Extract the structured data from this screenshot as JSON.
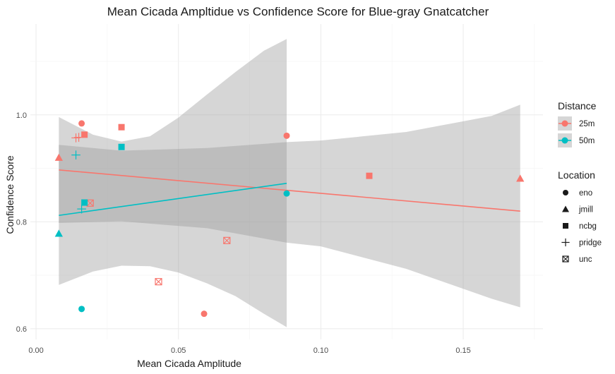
{
  "chart_data": {
    "type": "scatter",
    "title": "Mean Cicada Ampltidue vs Confidence Score for Blue-gray Gnatcatcher",
    "xlabel": "Mean Cicada Amplitude",
    "ylabel": "Confidence Score",
    "xlim": [
      -0.002,
      0.178
    ],
    "ylim": [
      0.58,
      1.17
    ],
    "x_ticks": [
      0.0,
      0.05,
      0.1,
      0.15
    ],
    "x_tick_labels": [
      "0.00",
      "0.05",
      "0.10",
      "0.15"
    ],
    "y_ticks": [
      0.6,
      0.8,
      1.0
    ],
    "y_tick_labels": [
      "0.6",
      "0.8",
      "1.0"
    ],
    "grid": true,
    "colors": {
      "25m": "#F8766D",
      "50m": "#00BFC4",
      "ribbon": "#999999"
    },
    "legend_position": "right",
    "legends": [
      {
        "title": "Distance",
        "kind": "color",
        "entries": [
          "25m",
          "50m"
        ]
      },
      {
        "title": "Location",
        "kind": "shape",
        "entries": [
          "eno",
          "jmill",
          "ncbg",
          "pridge",
          "unc"
        ]
      }
    ],
    "points": [
      {
        "x": 0.016,
        "y": 0.984,
        "distance": "25m",
        "location": "eno"
      },
      {
        "x": 0.059,
        "y": 0.628,
        "distance": "25m",
        "location": "eno"
      },
      {
        "x": 0.088,
        "y": 0.961,
        "distance": "25m",
        "location": "eno"
      },
      {
        "x": 0.008,
        "y": 0.92,
        "distance": "25m",
        "location": "jmill"
      },
      {
        "x": 0.17,
        "y": 0.881,
        "distance": "25m",
        "location": "jmill"
      },
      {
        "x": 0.017,
        "y": 0.963,
        "distance": "25m",
        "location": "ncbg"
      },
      {
        "x": 0.03,
        "y": 0.977,
        "distance": "25m",
        "location": "ncbg"
      },
      {
        "x": 0.117,
        "y": 0.886,
        "distance": "25m",
        "location": "ncbg"
      },
      {
        "x": 0.014,
        "y": 0.957,
        "distance": "25m",
        "location": "pridge"
      },
      {
        "x": 0.015,
        "y": 0.958,
        "distance": "25m",
        "location": "pridge"
      },
      {
        "x": 0.019,
        "y": 0.835,
        "distance": "25m",
        "location": "unc"
      },
      {
        "x": 0.043,
        "y": 0.688,
        "distance": "25m",
        "location": "unc"
      },
      {
        "x": 0.067,
        "y": 0.765,
        "distance": "25m",
        "location": "unc"
      },
      {
        "x": 0.016,
        "y": 0.637,
        "distance": "50m",
        "location": "eno"
      },
      {
        "x": 0.088,
        "y": 0.853,
        "distance": "50m",
        "location": "eno"
      },
      {
        "x": 0.008,
        "y": 0.778,
        "distance": "50m",
        "location": "jmill"
      },
      {
        "x": 0.017,
        "y": 0.836,
        "distance": "50m",
        "location": "ncbg"
      },
      {
        "x": 0.03,
        "y": 0.94,
        "distance": "50m",
        "location": "ncbg"
      },
      {
        "x": 0.014,
        "y": 0.925,
        "distance": "50m",
        "location": "pridge"
      },
      {
        "x": 0.016,
        "y": 0.824,
        "distance": "50m",
        "location": "pridge"
      }
    ],
    "fits": [
      {
        "distance": "25m",
        "line": [
          [
            0.008,
            0.897
          ],
          [
            0.17,
            0.82
          ]
        ],
        "ribbon_x": [
          0.008,
          0.03,
          0.06,
          0.088,
          0.1,
          0.13,
          0.16,
          0.17
        ],
        "ribbon_upper": [
          0.944,
          0.933,
          0.938,
          0.949,
          0.952,
          0.968,
          0.998,
          1.019
        ],
        "ribbon_lower": [
          0.798,
          0.801,
          0.788,
          0.761,
          0.754,
          0.712,
          0.656,
          0.64
        ]
      },
      {
        "distance": "50m",
        "line": [
          [
            0.008,
            0.812
          ],
          [
            0.088,
            0.872
          ]
        ],
        "ribbon_x": [
          0.008,
          0.02,
          0.03,
          0.04,
          0.05,
          0.06,
          0.07,
          0.08,
          0.088
        ],
        "ribbon_upper": [
          0.996,
          0.963,
          0.95,
          0.96,
          0.995,
          1.038,
          1.08,
          1.12,
          1.142
        ],
        "ribbon_lower": [
          0.682,
          0.707,
          0.718,
          0.717,
          0.705,
          0.685,
          0.661,
          0.628,
          0.603
        ]
      }
    ]
  }
}
